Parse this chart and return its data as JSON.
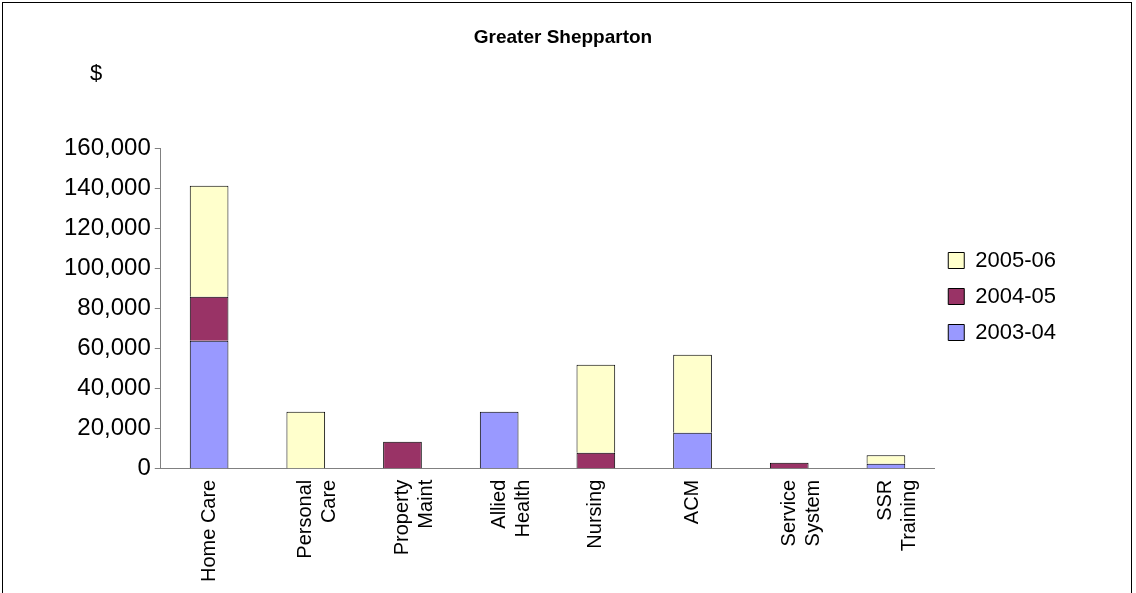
{
  "chart_data": {
    "type": "bar",
    "title": "Greater Shepparton",
    "ylabel": "$",
    "categories": [
      "Home Care",
      "Personal\nCare",
      "Property\nMaint",
      "Allied\nHealth",
      "Nursing",
      "ACM",
      "Service\nSystem",
      "SSR\nTraining"
    ],
    "stacked": true,
    "series": [
      {
        "name": "2003-04",
        "color": "#9999ff",
        "values": [
          64000,
          null,
          null,
          28500,
          null,
          18000,
          null,
          2500
        ]
      },
      {
        "name": "2004-05",
        "color": "#993366",
        "values": [
          22000,
          null,
          13500,
          null,
          8000,
          null,
          3000,
          null
        ]
      },
      {
        "name": "2005-06",
        "color": "#ffffcc",
        "values": [
          55500,
          28500,
          null,
          null,
          44000,
          39000,
          null,
          4300
        ]
      }
    ],
    "ylim": [
      0,
      160000
    ],
    "yticks": [
      0,
      {
        "value": 20000,
        "label": "20,000"
      },
      {
        "value": 40000,
        "label": "40,000"
      },
      {
        "value": 60000,
        "label": "60,000"
      },
      {
        "value": 80000,
        "label": "80,000"
      },
      {
        "value": 100000,
        "label": "100,000"
      },
      {
        "value": 120000,
        "label": "120,000"
      },
      {
        "value": 140000,
        "label": "140,000"
      },
      {
        "value": 160000,
        "label": "160,000"
      }
    ],
    "grid": false,
    "legend": "right"
  }
}
